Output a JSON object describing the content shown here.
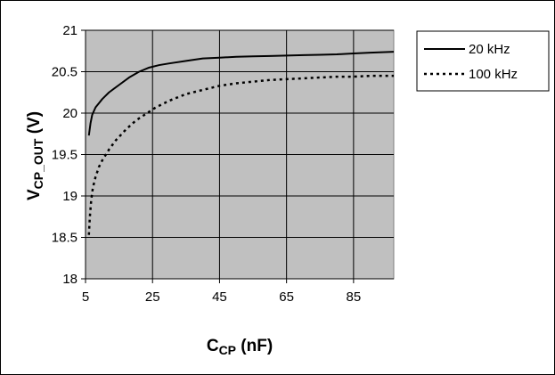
{
  "chart_data": {
    "type": "line",
    "xlabel": {
      "main": "C",
      "sub": "CP",
      "rest": " (nF)"
    },
    "ylabel": {
      "main": "V",
      "sub": "CP_OUT",
      "rest": " (V)"
    },
    "xlim": [
      5,
      97
    ],
    "ylim": [
      18,
      21
    ],
    "x_ticks": [
      5,
      25,
      45,
      65,
      85
    ],
    "x_tick_labels": [
      "5",
      "25",
      "45",
      "65",
      "85"
    ],
    "y_ticks": [
      18,
      18.5,
      19,
      19.5,
      20,
      20.5,
      21
    ],
    "y_tick_labels": [
      "18",
      "18.5",
      "19",
      "19.5",
      "20",
      "20.5",
      "21"
    ],
    "grid": true,
    "plot_background": "#c0c0c0",
    "legend_position": "right",
    "series": [
      {
        "name": "20 kHz",
        "style": "solid",
        "color": "#000000",
        "x": [
          6,
          6.5,
          7,
          8,
          9,
          10,
          12,
          15,
          18,
          21,
          24,
          27,
          30,
          35,
          40,
          45,
          50,
          55,
          60,
          65,
          70,
          75,
          80,
          85,
          90,
          97
        ],
        "y": [
          19.73,
          19.88,
          19.98,
          20.07,
          20.12,
          20.17,
          20.25,
          20.34,
          20.43,
          20.5,
          20.55,
          20.58,
          20.6,
          20.63,
          20.66,
          20.67,
          20.68,
          20.685,
          20.69,
          20.695,
          20.7,
          20.705,
          20.71,
          20.72,
          20.73,
          20.74
        ]
      },
      {
        "name": "100 kHz",
        "style": "dotted",
        "color": "#000000",
        "x": [
          6,
          6.3,
          6.7,
          7.2,
          8,
          9,
          10,
          12,
          14,
          17,
          20,
          23,
          26,
          30,
          35,
          40,
          45,
          50,
          55,
          60,
          65,
          70,
          75,
          80,
          85,
          90,
          97
        ],
        "y": [
          18.53,
          18.75,
          18.95,
          19.1,
          19.23,
          19.35,
          19.43,
          19.56,
          19.67,
          19.8,
          19.91,
          19.99,
          20.07,
          20.15,
          20.23,
          20.28,
          20.33,
          20.36,
          20.38,
          20.4,
          20.41,
          20.42,
          20.43,
          20.44,
          20.44,
          20.45,
          20.45
        ]
      }
    ]
  }
}
